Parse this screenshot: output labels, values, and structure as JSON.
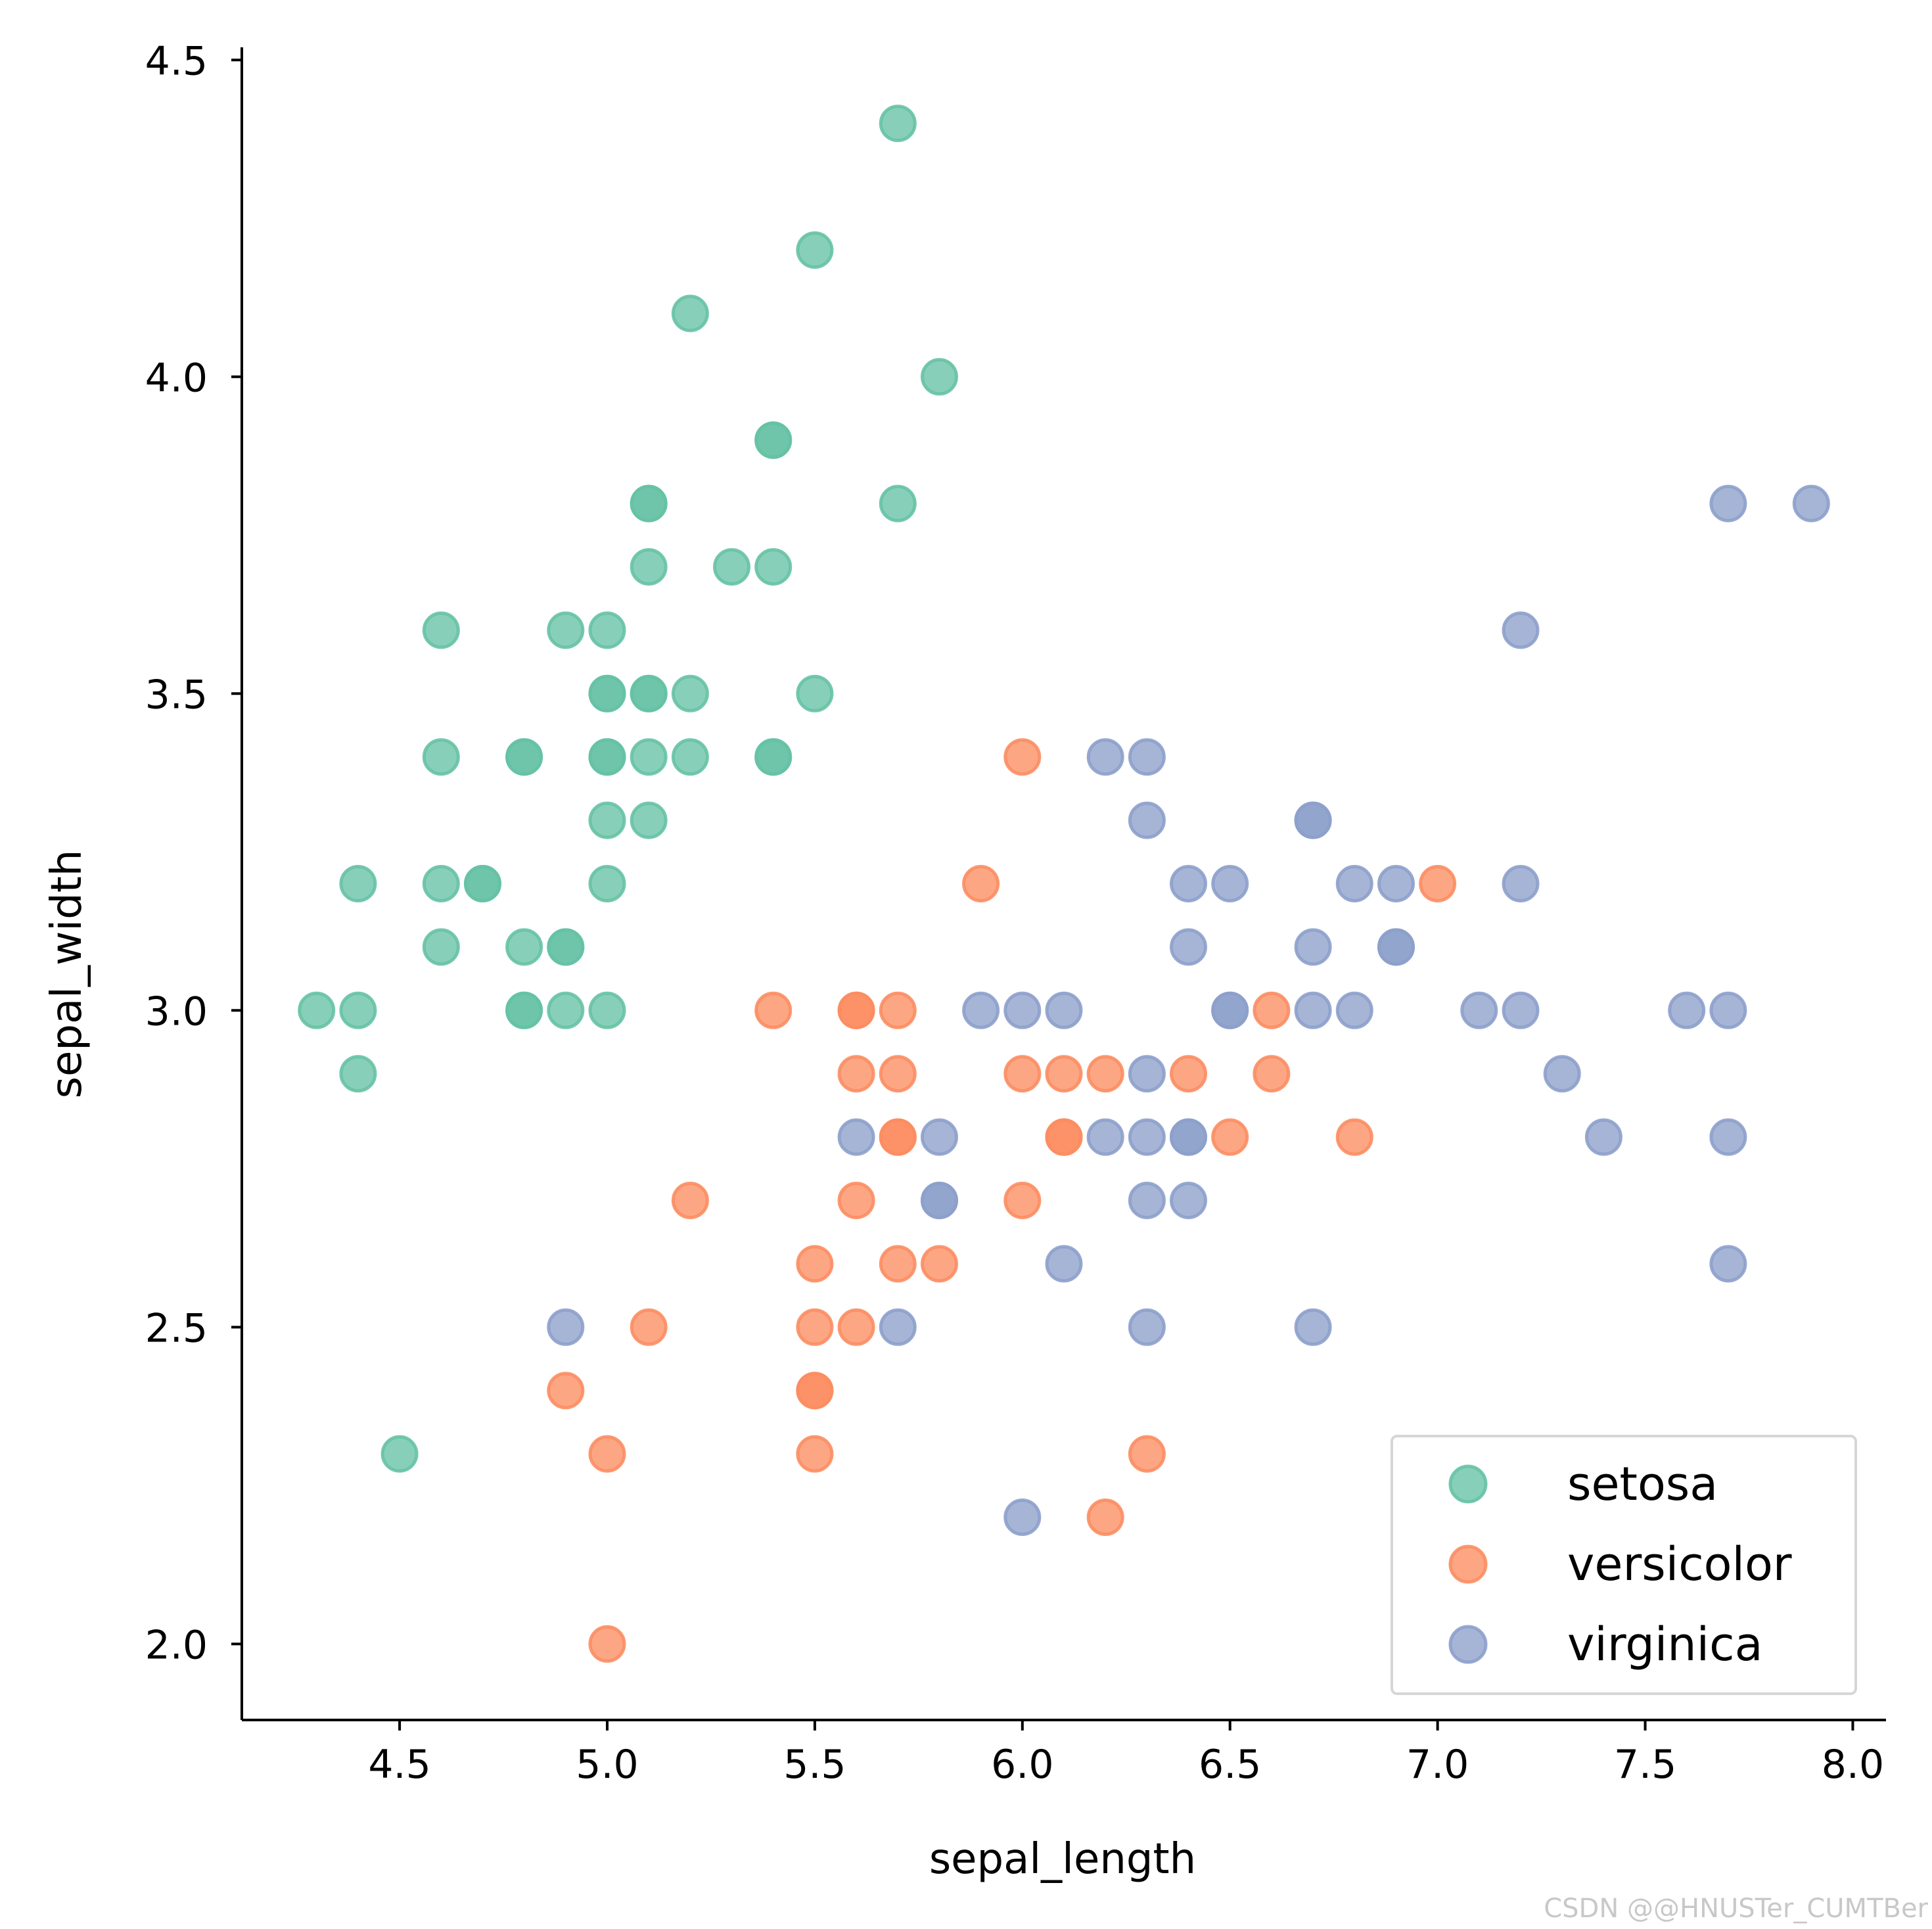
{
  "chart_data": {
    "type": "scatter",
    "title": "",
    "xlabel": "sepal_length",
    "ylabel": "sepal_width",
    "xlim": [
      4.12,
      8.08
    ],
    "ylim": [
      1.88,
      4.52
    ],
    "xticks": [
      "4.5",
      "5.0",
      "5.5",
      "6.0",
      "6.5",
      "7.0",
      "7.5",
      "8.0"
    ],
    "yticks": [
      "2.0",
      "2.5",
      "3.0",
      "3.5",
      "4.0",
      "4.5"
    ],
    "legend_position": "lower-right",
    "series": [
      {
        "name": "setosa",
        "color": "#66c2a5",
        "points": [
          [
            5.7,
            4.4
          ],
          [
            5.5,
            4.2
          ],
          [
            5.2,
            4.1
          ],
          [
            5.8,
            4.0
          ],
          [
            5.4,
            3.9
          ],
          [
            5.4,
            3.9
          ],
          [
            5.1,
            3.8
          ],
          [
            5.1,
            3.8
          ],
          [
            5.7,
            3.8
          ],
          [
            5.1,
            3.7
          ],
          [
            5.3,
            3.7
          ],
          [
            5.4,
            3.7
          ],
          [
            4.6,
            3.6
          ],
          [
            4.9,
            3.6
          ],
          [
            5.0,
            3.6
          ],
          [
            5.0,
            3.5
          ],
          [
            5.0,
            3.5
          ],
          [
            5.1,
            3.5
          ],
          [
            5.1,
            3.5
          ],
          [
            5.2,
            3.5
          ],
          [
            5.5,
            3.5
          ],
          [
            4.6,
            3.4
          ],
          [
            4.8,
            3.4
          ],
          [
            4.8,
            3.4
          ],
          [
            5.0,
            3.4
          ],
          [
            5.0,
            3.4
          ],
          [
            5.1,
            3.4
          ],
          [
            5.2,
            3.4
          ],
          [
            5.4,
            3.4
          ],
          [
            5.4,
            3.4
          ],
          [
            5.0,
            3.3
          ],
          [
            5.1,
            3.3
          ],
          [
            4.4,
            3.2
          ],
          [
            4.6,
            3.2
          ],
          [
            4.7,
            3.2
          ],
          [
            4.7,
            3.2
          ],
          [
            5.0,
            3.2
          ],
          [
            4.6,
            3.1
          ],
          [
            4.8,
            3.1
          ],
          [
            4.9,
            3.1
          ],
          [
            4.9,
            3.1
          ],
          [
            4.3,
            3.0
          ],
          [
            4.4,
            3.0
          ],
          [
            4.8,
            3.0
          ],
          [
            4.8,
            3.0
          ],
          [
            4.9,
            3.0
          ],
          [
            5.0,
            3.0
          ],
          [
            4.4,
            2.9
          ],
          [
            4.5,
            2.3
          ]
        ]
      },
      {
        "name": "versicolor",
        "color": "#fc8d62",
        "points": [
          [
            6.0,
            3.4
          ],
          [
            5.9,
            3.2
          ],
          [
            7.0,
            3.2
          ],
          [
            5.4,
            3.0
          ],
          [
            5.6,
            3.0
          ],
          [
            5.6,
            3.0
          ],
          [
            5.7,
            3.0
          ],
          [
            6.6,
            3.0
          ],
          [
            5.6,
            2.9
          ],
          [
            5.7,
            2.9
          ],
          [
            6.0,
            2.9
          ],
          [
            6.1,
            2.9
          ],
          [
            6.2,
            2.9
          ],
          [
            6.4,
            2.9
          ],
          [
            6.6,
            2.9
          ],
          [
            5.7,
            2.8
          ],
          [
            5.7,
            2.8
          ],
          [
            6.1,
            2.8
          ],
          [
            6.1,
            2.8
          ],
          [
            6.5,
            2.8
          ],
          [
            6.8,
            2.8
          ],
          [
            5.2,
            2.7
          ],
          [
            5.6,
            2.7
          ],
          [
            6.0,
            2.7
          ],
          [
            5.5,
            2.6
          ],
          [
            5.7,
            2.6
          ],
          [
            5.8,
            2.6
          ],
          [
            5.1,
            2.5
          ],
          [
            5.5,
            2.5
          ],
          [
            5.6,
            2.5
          ],
          [
            4.9,
            2.4
          ],
          [
            5.5,
            2.4
          ],
          [
            5.5,
            2.4
          ],
          [
            5.0,
            2.3
          ],
          [
            5.5,
            2.3
          ],
          [
            6.3,
            2.3
          ],
          [
            6.2,
            2.2
          ],
          [
            5.0,
            2.0
          ]
        ]
      },
      {
        "name": "virginica",
        "color": "#8da0cb",
        "points": [
          [
            7.7,
            3.8
          ],
          [
            7.9,
            3.8
          ],
          [
            7.2,
            3.6
          ],
          [
            6.2,
            3.4
          ],
          [
            6.3,
            3.4
          ],
          [
            6.3,
            3.3
          ],
          [
            6.7,
            3.3
          ],
          [
            6.7,
            3.3
          ],
          [
            6.4,
            3.2
          ],
          [
            6.5,
            3.2
          ],
          [
            6.8,
            3.2
          ],
          [
            6.9,
            3.2
          ],
          [
            7.2,
            3.2
          ],
          [
            6.4,
            3.1
          ],
          [
            6.7,
            3.1
          ],
          [
            6.9,
            3.1
          ],
          [
            6.9,
            3.1
          ],
          [
            5.9,
            3.0
          ],
          [
            6.0,
            3.0
          ],
          [
            6.1,
            3.0
          ],
          [
            6.5,
            3.0
          ],
          [
            6.5,
            3.0
          ],
          [
            6.7,
            3.0
          ],
          [
            6.8,
            3.0
          ],
          [
            7.1,
            3.0
          ],
          [
            7.2,
            3.0
          ],
          [
            7.6,
            3.0
          ],
          [
            7.7,
            3.0
          ],
          [
            6.3,
            2.9
          ],
          [
            7.3,
            2.9
          ],
          [
            5.6,
            2.8
          ],
          [
            5.8,
            2.8
          ],
          [
            6.2,
            2.8
          ],
          [
            6.3,
            2.8
          ],
          [
            6.4,
            2.8
          ],
          [
            6.4,
            2.8
          ],
          [
            7.4,
            2.8
          ],
          [
            7.7,
            2.8
          ],
          [
            5.8,
            2.7
          ],
          [
            5.8,
            2.7
          ],
          [
            6.3,
            2.7
          ],
          [
            6.4,
            2.7
          ],
          [
            6.1,
            2.6
          ],
          [
            7.7,
            2.6
          ],
          [
            4.9,
            2.5
          ],
          [
            5.7,
            2.5
          ],
          [
            6.3,
            2.5
          ],
          [
            6.7,
            2.5
          ],
          [
            6.0,
            2.2
          ]
        ]
      }
    ]
  },
  "watermark": "CSDN @@HNUSTer_CUMTBer"
}
